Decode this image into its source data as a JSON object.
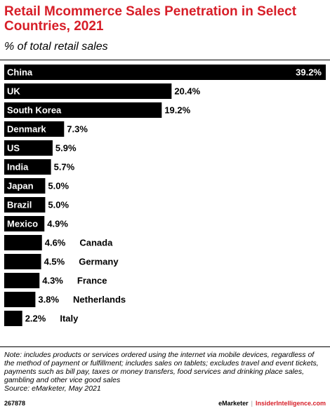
{
  "header": {
    "title": "Retail Mcommerce Sales Penetration in Select Countries, 2021",
    "subtitle": "% of total retail sales"
  },
  "chart_data": {
    "type": "bar",
    "orientation": "horizontal",
    "categories": [
      "China",
      "UK",
      "South Korea",
      "Denmark",
      "US",
      "India",
      "Japan",
      "Brazil",
      "Mexico",
      "Canada",
      "Germany",
      "France",
      "Netherlands",
      "Italy"
    ],
    "values": [
      39.2,
      20.4,
      19.2,
      7.3,
      5.9,
      5.7,
      5.0,
      5.0,
      4.9,
      4.6,
      4.5,
      4.3,
      3.8,
      2.2
    ],
    "value_labels": [
      "39.2%",
      "20.4%",
      "19.2%",
      "7.3%",
      "5.9%",
      "5.7%",
      "5.0%",
      "5.0%",
      "4.9%",
      "4.6%",
      "4.5%",
      "4.3%",
      "3.8%",
      "2.2%"
    ],
    "xlim": [
      0,
      39.2
    ],
    "bar_color": "#000000",
    "label_color": "#ffffff",
    "grid": false,
    "legend": "none"
  },
  "note": "Note: includes products or services ordered using the internet via mobile devices, regardless of the method of payment or fulfillment; includes sales on tablets; excludes travel and event tickets, payments such as bill pay, taxes or money transfers, food services and drinking place sales, gambling and other vice good sales",
  "source": "Source: eMarketer, May 2021",
  "footer": {
    "chart_id": "267878",
    "brand_1": "eMarketer",
    "separator": "|",
    "brand_2": "InsiderIntelligence.com"
  },
  "colors": {
    "accent": "#d71e28",
    "text": "#000000"
  }
}
